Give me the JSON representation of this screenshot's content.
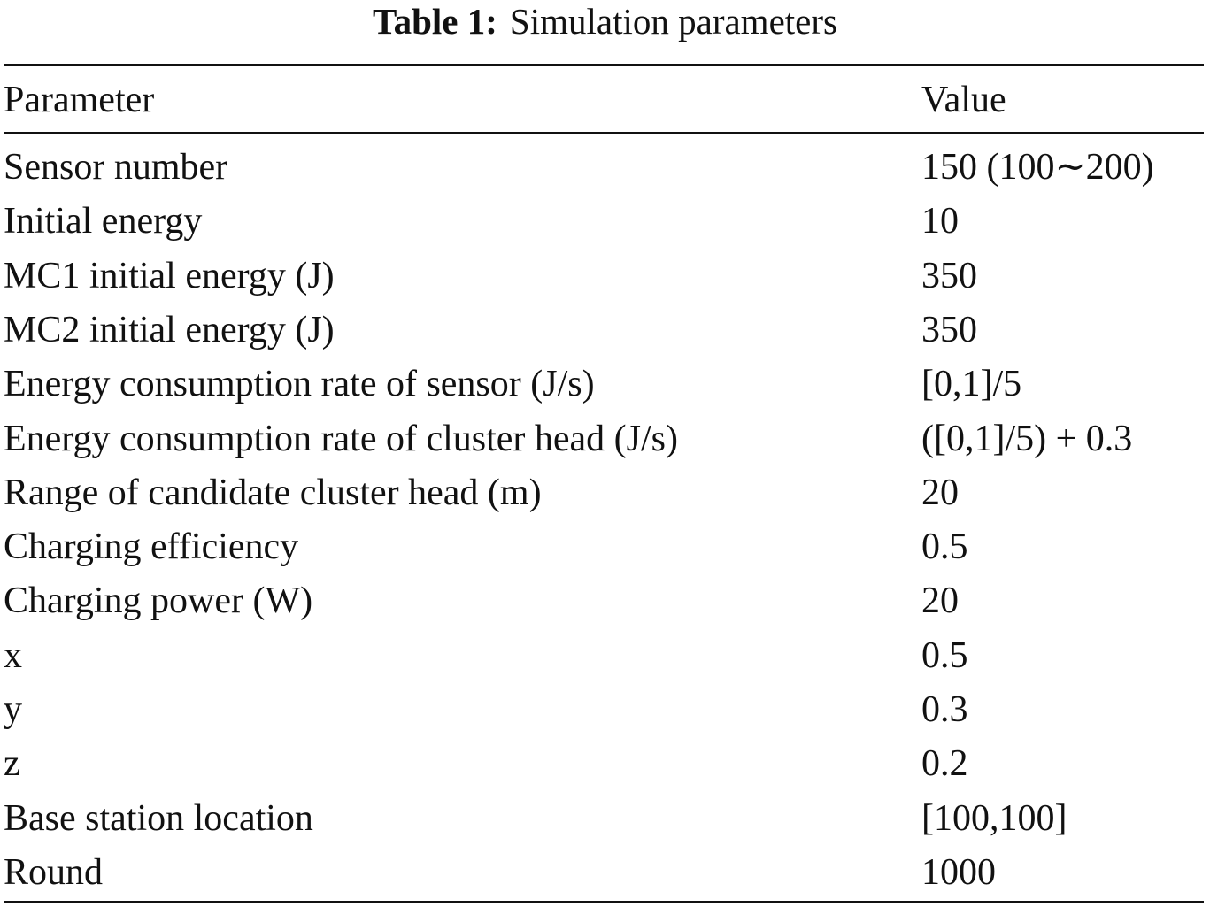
{
  "caption": {
    "label": "Table 1:",
    "title": "Simulation parameters"
  },
  "table": {
    "headers": [
      "Parameter",
      "Value"
    ],
    "rows": [
      [
        "Sensor number",
        "150 (100∼200)"
      ],
      [
        "Initial energy",
        "10"
      ],
      [
        "MC1 initial energy (J)",
        "350"
      ],
      [
        "MC2 initial energy (J)",
        "350"
      ],
      [
        "Energy consumption rate of sensor (J/s)",
        "[0,1]/5"
      ],
      [
        "Energy consumption rate of cluster head (J/s)",
        "([0,1]/5) + 0.3"
      ],
      [
        "Range of candidate cluster head (m)",
        "20"
      ],
      [
        "Charging efficiency",
        "0.5"
      ],
      [
        "Charging power (W)",
        "20"
      ],
      [
        "x",
        "0.5"
      ],
      [
        "y",
        "0.3"
      ],
      [
        "z",
        "0.2"
      ],
      [
        "Base station location",
        "[100,100]"
      ],
      [
        "Round",
        "1000"
      ]
    ]
  }
}
